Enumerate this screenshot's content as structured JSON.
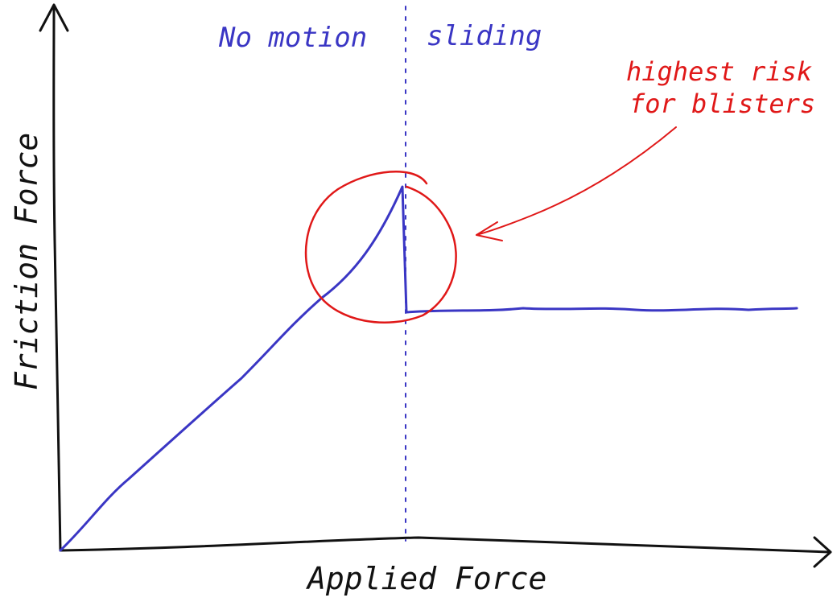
{
  "diagram": {
    "x_axis_label": "Applied Force",
    "y_axis_label": "Friction Force",
    "region_left_label": "No motion",
    "region_right_label": "sliding",
    "annotation": {
      "lines": [
        "highest risk",
        "for blisters"
      ]
    },
    "colors": {
      "ink": "#111111",
      "curve": "#3a36c4",
      "annotation": "#e01818",
      "divider": "#3a36c4"
    }
  }
}
